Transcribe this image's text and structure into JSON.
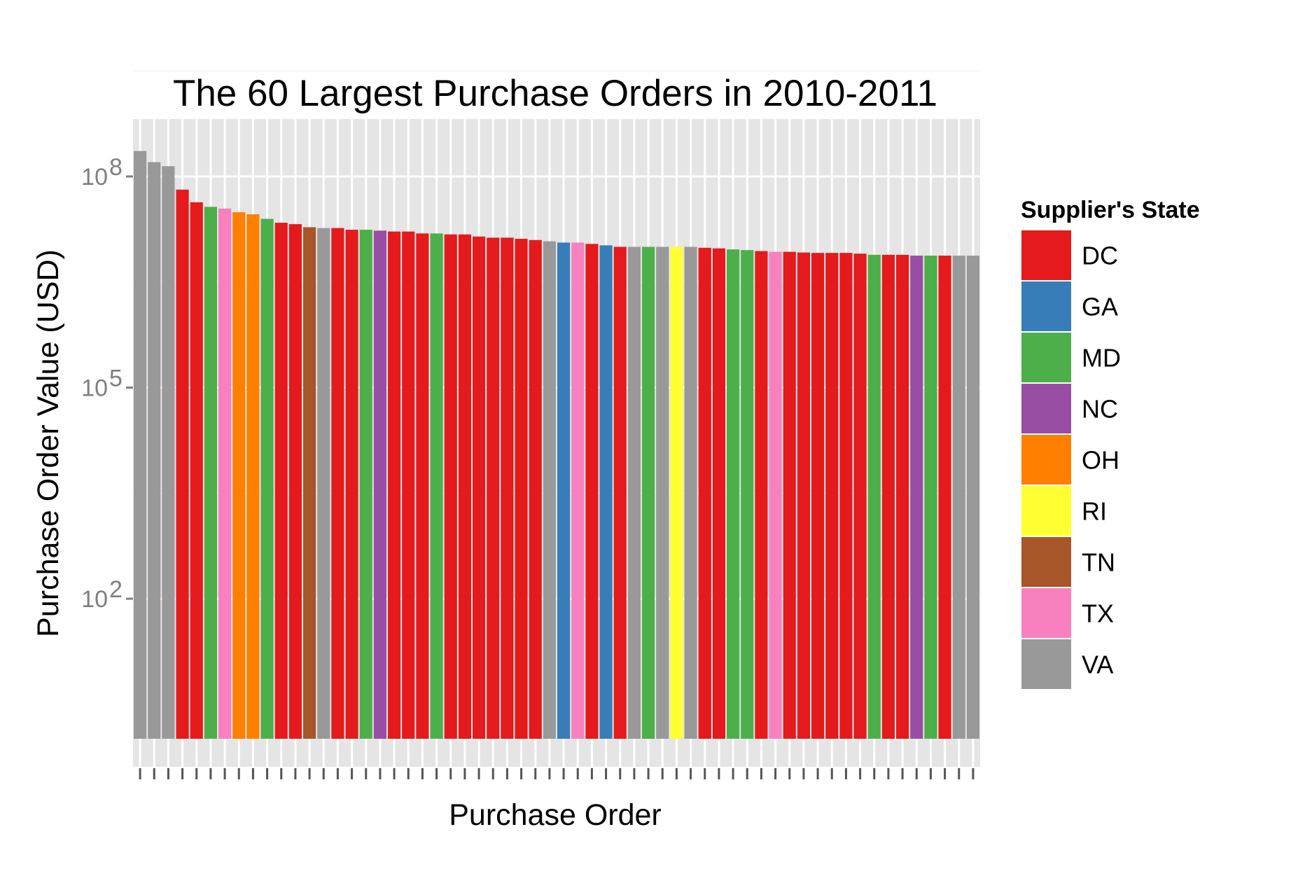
{
  "chart_data": {
    "type": "bar",
    "title": "The 60 Largest Purchase Orders in 2010-2011",
    "xlabel": "Purchase Order",
    "ylabel": "Purchase Order Value (USD)",
    "y_scale": "log10",
    "ylim": [
      1,
      500000000
    ],
    "grid": true,
    "legend_position": "right",
    "y_ticks": [
      {
        "value": 100,
        "mantissa": "10",
        "exponent": "2"
      },
      {
        "value": 100000,
        "mantissa": "10",
        "exponent": "5"
      },
      {
        "value": 100000000,
        "mantissa": "10",
        "exponent": "8"
      }
    ],
    "legend": {
      "title": "Supplier's State",
      "entries": [
        {
          "label": "DC",
          "color": "#E41A1C"
        },
        {
          "label": "GA",
          "color": "#377EB8"
        },
        {
          "label": "MD",
          "color": "#4DAF4A"
        },
        {
          "label": "NC",
          "color": "#984EA3"
        },
        {
          "label": "OH",
          "color": "#FF7F00"
        },
        {
          "label": "RI",
          "color": "#FFFF33"
        },
        {
          "label": "TN",
          "color": "#A65628"
        },
        {
          "label": "TX",
          "color": "#F781BF"
        },
        {
          "label": "VA",
          "color": "#999999"
        }
      ]
    },
    "bars": [
      {
        "state": "VA",
        "value": 230000000
      },
      {
        "state": "VA",
        "value": 160000000
      },
      {
        "state": "VA",
        "value": 140000000
      },
      {
        "state": "DC",
        "value": 65000000
      },
      {
        "state": "DC",
        "value": 43000000
      },
      {
        "state": "MD",
        "value": 37000000
      },
      {
        "state": "TX",
        "value": 35000000
      },
      {
        "state": "OH",
        "value": 31000000
      },
      {
        "state": "OH",
        "value": 29000000
      },
      {
        "state": "MD",
        "value": 25000000
      },
      {
        "state": "DC",
        "value": 22000000
      },
      {
        "state": "DC",
        "value": 21000000
      },
      {
        "state": "TN",
        "value": 19000000
      },
      {
        "state": "VA",
        "value": 18500000
      },
      {
        "state": "DC",
        "value": 18500000
      },
      {
        "state": "DC",
        "value": 17500000
      },
      {
        "state": "MD",
        "value": 17500000
      },
      {
        "state": "NC",
        "value": 17000000
      },
      {
        "state": "DC",
        "value": 16500000
      },
      {
        "state": "DC",
        "value": 16500000
      },
      {
        "state": "DC",
        "value": 15500000
      },
      {
        "state": "MD",
        "value": 15500000
      },
      {
        "state": "DC",
        "value": 15000000
      },
      {
        "state": "DC",
        "value": 15000000
      },
      {
        "state": "DC",
        "value": 14000000
      },
      {
        "state": "DC",
        "value": 13500000
      },
      {
        "state": "DC",
        "value": 13500000
      },
      {
        "state": "DC",
        "value": 13000000
      },
      {
        "state": "DC",
        "value": 12500000
      },
      {
        "state": "VA",
        "value": 12000000
      },
      {
        "state": "GA",
        "value": 11500000
      },
      {
        "state": "TX",
        "value": 11500000
      },
      {
        "state": "DC",
        "value": 11000000
      },
      {
        "state": "GA",
        "value": 10500000
      },
      {
        "state": "DC",
        "value": 10000000
      },
      {
        "state": "VA",
        "value": 10000000
      },
      {
        "state": "MD",
        "value": 10000000
      },
      {
        "state": "VA",
        "value": 10000000
      },
      {
        "state": "RI",
        "value": 10000000
      },
      {
        "state": "VA",
        "value": 10000000
      },
      {
        "state": "DC",
        "value": 9700000
      },
      {
        "state": "DC",
        "value": 9500000
      },
      {
        "state": "MD",
        "value": 9200000
      },
      {
        "state": "MD",
        "value": 9000000
      },
      {
        "state": "DC",
        "value": 8700000
      },
      {
        "state": "TX",
        "value": 8500000
      },
      {
        "state": "DC",
        "value": 8500000
      },
      {
        "state": "DC",
        "value": 8300000
      },
      {
        "state": "DC",
        "value": 8200000
      },
      {
        "state": "DC",
        "value": 8200000
      },
      {
        "state": "DC",
        "value": 8200000
      },
      {
        "state": "DC",
        "value": 8000000
      },
      {
        "state": "MD",
        "value": 7700000
      },
      {
        "state": "DC",
        "value": 7700000
      },
      {
        "state": "DC",
        "value": 7700000
      },
      {
        "state": "NC",
        "value": 7500000
      },
      {
        "state": "MD",
        "value": 7500000
      },
      {
        "state": "DC",
        "value": 7500000
      },
      {
        "state": "VA",
        "value": 7500000
      },
      {
        "state": "VA",
        "value": 7500000
      }
    ]
  }
}
